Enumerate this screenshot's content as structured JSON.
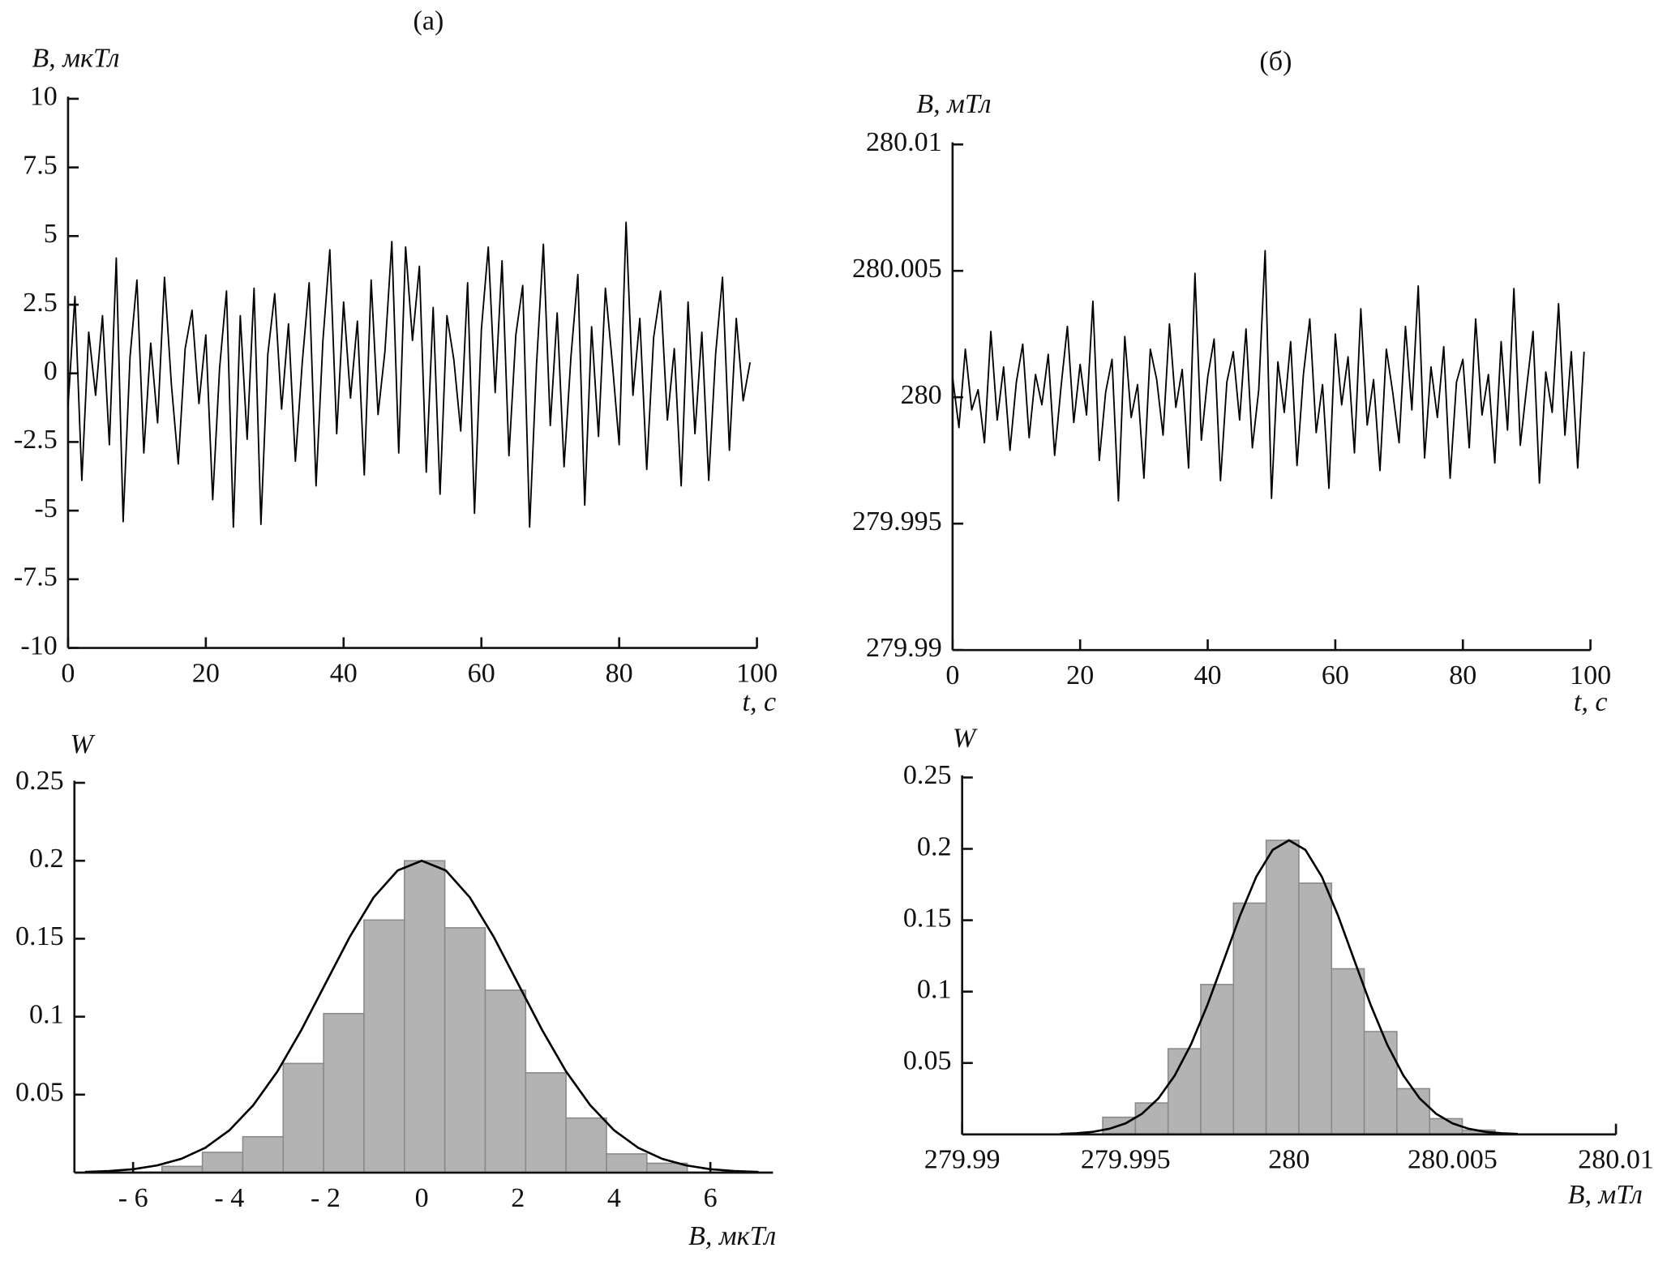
{
  "chart_data": [
    {
      "type": "line",
      "title": "(а)",
      "ylabel": "B, мкТл",
      "xlabel": "t, с",
      "color": "#000000",
      "xlim": [
        0,
        100
      ],
      "xticks": [
        0,
        20,
        40,
        60,
        80,
        100
      ],
      "ylim": [
        -10,
        10
      ],
      "yticks": [
        -10,
        -7.5,
        -5,
        -2.5,
        0,
        2.5,
        5,
        7.5,
        10
      ],
      "x": [
        0,
        1,
        2,
        3,
        4,
        5,
        6,
        7,
        8,
        9,
        10,
        11,
        12,
        13,
        14,
        15,
        16,
        17,
        18,
        19,
        20,
        21,
        22,
        23,
        24,
        25,
        26,
        27,
        28,
        29,
        30,
        31,
        32,
        33,
        34,
        35,
        36,
        37,
        38,
        39,
        40,
        41,
        42,
        43,
        44,
        45,
        46,
        47,
        48,
        49,
        50,
        51,
        52,
        53,
        54,
        55,
        56,
        57,
        58,
        59,
        60,
        61,
        62,
        63,
        64,
        65,
        66,
        67,
        68,
        69,
        70,
        71,
        72,
        73,
        74,
        75,
        76,
        77,
        78,
        79,
        80,
        81,
        82,
        83,
        84,
        85,
        86,
        87,
        88,
        89,
        90,
        91,
        92,
        93,
        94,
        95,
        96,
        97,
        98,
        99
      ],
      "values": [
        -1.2,
        2.8,
        -3.9,
        1.5,
        -0.8,
        2.1,
        -2.6,
        4.2,
        -5.4,
        0.6,
        3.4,
        -2.9,
        1.1,
        -1.8,
        3.5,
        -0.4,
        -3.3,
        0.9,
        2.3,
        -1.1,
        1.4,
        -4.6,
        0.2,
        3.0,
        -5.6,
        2.1,
        -2.4,
        3.1,
        -5.5,
        0.7,
        2.9,
        -1.3,
        1.8,
        -3.2,
        0.4,
        3.3,
        -4.1,
        1.2,
        4.5,
        -2.2,
        2.6,
        -0.9,
        1.9,
        -3.7,
        3.4,
        -1.5,
        0.8,
        4.8,
        -2.9,
        4.6,
        1.2,
        3.9,
        -3.6,
        2.4,
        -4.4,
        2.1,
        0.5,
        -2.1,
        3.3,
        -5.1,
        1.6,
        4.6,
        -0.7,
        4.1,
        -3.0,
        1.4,
        3.2,
        -5.6,
        0.3,
        4.7,
        -1.9,
        2.2,
        -3.4,
        0.6,
        3.6,
        -4.8,
        1.7,
        -2.3,
        3.1,
        0.4,
        -2.6,
        5.5,
        -0.8,
        2.0,
        -3.5,
        1.3,
        3.0,
        -1.7,
        0.9,
        -4.1,
        2.6,
        -2.2,
        1.5,
        -3.9,
        0.7,
        3.5,
        -2.8,
        2.0,
        -1.0,
        0.4
      ]
    },
    {
      "type": "line",
      "title": "(б)",
      "ylabel": "B, мТл",
      "xlabel": "t, с",
      "color": "#000000",
      "xlim": [
        0,
        100
      ],
      "xticks": [
        0,
        20,
        40,
        60,
        80,
        100
      ],
      "ylim": [
        279.99,
        280.01
      ],
      "yticks": [
        279.99,
        279.995,
        280,
        280.005,
        280.01
      ],
      "x": [
        0,
        1,
        2,
        3,
        4,
        5,
        6,
        7,
        8,
        9,
        10,
        11,
        12,
        13,
        14,
        15,
        16,
        17,
        18,
        19,
        20,
        21,
        22,
        23,
        24,
        25,
        26,
        27,
        28,
        29,
        30,
        31,
        32,
        33,
        34,
        35,
        36,
        37,
        38,
        39,
        40,
        41,
        42,
        43,
        44,
        45,
        46,
        47,
        48,
        49,
        50,
        51,
        52,
        53,
        54,
        55,
        56,
        57,
        58,
        59,
        60,
        61,
        62,
        63,
        64,
        65,
        66,
        67,
        68,
        69,
        70,
        71,
        72,
        73,
        74,
        75,
        76,
        77,
        78,
        79,
        80,
        81,
        82,
        83,
        84,
        85,
        86,
        87,
        88,
        89,
        90,
        91,
        92,
        93,
        94,
        95,
        96,
        97,
        98,
        99
      ],
      "values": [
        280.0008,
        279.9988,
        280.0019,
        279.9995,
        280.0003,
        279.9982,
        280.0026,
        279.9991,
        280.0012,
        279.9979,
        280.0006,
        280.0021,
        279.9984,
        280.0009,
        279.9997,
        280.0017,
        279.9977,
        280.0004,
        280.0028,
        279.999,
        280.0013,
        279.9993,
        280.0038,
        279.9975,
        280.0002,
        280.0015,
        279.9959,
        280.0024,
        279.9992,
        280.0005,
        279.9968,
        280.0019,
        280.0007,
        279.9985,
        280.0029,
        279.9996,
        280.0011,
        279.9972,
        280.0049,
        279.9983,
        280.0008,
        280.0023,
        279.9967,
        280.0006,
        280.0018,
        279.9991,
        280.0027,
        279.998,
        280.0003,
        280.0058,
        279.996,
        280.0014,
        279.9994,
        280.0022,
        279.9973,
        280.0009,
        280.0031,
        279.9986,
        280.0005,
        279.9964,
        280.0025,
        279.9997,
        280.0016,
        279.9978,
        280.0035,
        279.9989,
        280.0007,
        279.9971,
        280.0019,
        280.0002,
        279.9982,
        280.0028,
        279.9995,
        280.0044,
        279.9976,
        280.0012,
        279.9992,
        280.002,
        279.9968,
        280.0006,
        280.0015,
        279.998,
        280.0031,
        279.9993,
        280.0009,
        279.9974,
        280.0022,
        279.9987,
        280.0043,
        279.9981,
        280.0004,
        280.0026,
        279.9966,
        280.001,
        279.9994,
        280.0037,
        279.9985,
        280.0018,
        279.9972,
        280.0018
      ]
    },
    {
      "type": "histogram",
      "ylabel": "W",
      "xlabel": "B, мкТл",
      "color": "#b3b3b3",
      "xlim": [
        -7.22,
        7.3
      ],
      "xticks": [
        {
          "value": -6,
          "label": "- 6"
        },
        {
          "value": -4,
          "label": "- 4"
        },
        {
          "value": -2,
          "label": "- 2"
        },
        0,
        2,
        4,
        6
      ],
      "ylim": [
        0,
        0.25
      ],
      "yticks": [
        0.05,
        0.1,
        0.15,
        0.2,
        0.25
      ],
      "bins": [
        -5.4,
        -4.56,
        -3.72,
        -2.88,
        -2.04,
        -1.2,
        -0.36,
        0.48,
        1.32,
        2.16,
        3.0,
        3.84,
        4.68,
        5.52
      ],
      "counts": [
        0.004,
        0.013,
        0.023,
        0.07,
        0.102,
        0.162,
        0.2,
        0.157,
        0.117,
        0.064,
        0.035,
        0.012,
        0.006
      ],
      "curve": {
        "color": "#000000",
        "x": [
          -7,
          -6.5,
          -6,
          -5.5,
          -5,
          -4.5,
          -4,
          -3.5,
          -3,
          -2.5,
          -2,
          -1.5,
          -1,
          -0.5,
          0,
          0.5,
          1,
          1.5,
          2,
          2.5,
          3,
          3.5,
          4,
          4.5,
          5,
          5.5,
          6,
          6.5,
          7
        ],
        "values": [
          0.0004,
          0.001,
          0.0022,
          0.0046,
          0.0088,
          0.0159,
          0.0271,
          0.0433,
          0.0649,
          0.0916,
          0.1213,
          0.151,
          0.1765,
          0.1938,
          0.2,
          0.1938,
          0.1765,
          0.151,
          0.1213,
          0.0916,
          0.0649,
          0.0433,
          0.0271,
          0.0159,
          0.0088,
          0.0046,
          0.0022,
          0.001,
          0.0004
        ]
      }
    },
    {
      "type": "histogram",
      "ylabel": "W",
      "xlabel": "B, мТл",
      "color": "#b3b3b3",
      "xlim": [
        279.99,
        280.01
      ],
      "xticks": [
        279.99,
        279.995,
        280,
        280.005,
        280.01
      ],
      "ylim": [
        0,
        0.25
      ],
      "yticks": [
        0.05,
        0.1,
        0.15,
        0.2,
        0.25
      ],
      "bins": [
        279.9943,
        279.9953,
        279.9963,
        279.9973,
        279.9983,
        279.9993,
        280.0003,
        280.0013,
        280.0023,
        280.0033,
        280.0043,
        280.0053,
        280.0063
      ],
      "counts": [
        0.012,
        0.022,
        0.06,
        0.105,
        0.162,
        0.206,
        0.176,
        0.116,
        0.072,
        0.032,
        0.011,
        0.003
      ],
      "curve": {
        "color": "#000000",
        "x": [
          279.993,
          279.9935,
          279.994,
          279.9945,
          279.995,
          279.9955,
          279.996,
          279.9965,
          279.997,
          279.9975,
          279.998,
          279.9985,
          279.999,
          279.9995,
          280,
          280.0005,
          280.001,
          280.0015,
          280.002,
          280.0025,
          280.003,
          280.0035,
          280.004,
          280.0045,
          280.005,
          280.0055,
          280.006,
          280.0065,
          280.007
        ],
        "values": [
          0.0003,
          0.0008,
          0.0018,
          0.0039,
          0.0077,
          0.0144,
          0.0251,
          0.0411,
          0.063,
          0.0905,
          0.1217,
          0.1532,
          0.1806,
          0.1993,
          0.206,
          0.1993,
          0.1806,
          0.1532,
          0.1217,
          0.0905,
          0.063,
          0.0411,
          0.0251,
          0.0144,
          0.0077,
          0.0039,
          0.0018,
          0.0008,
          0.0003
        ]
      }
    }
  ]
}
